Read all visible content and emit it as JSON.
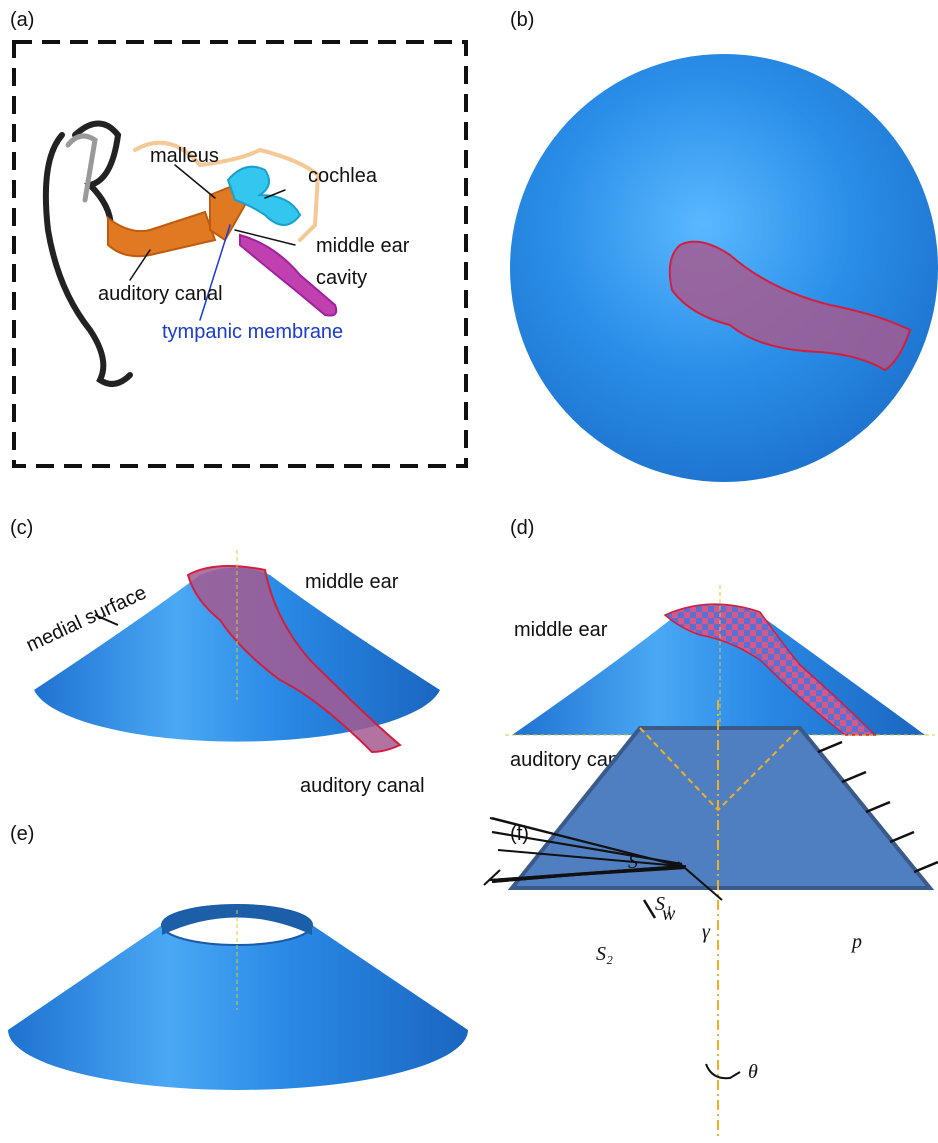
{
  "panels": [
    {
      "label": "(a)",
      "annotations": [
        "malleus",
        "cochlea",
        "middle ear",
        "cavity",
        "auditory canal",
        "tympanic membrane"
      ]
    },
    {
      "label": "(b)"
    },
    {
      "label": "(c)",
      "annotations": [
        "medial surface",
        "middle ear",
        "auditory canal"
      ]
    },
    {
      "label": "(d)",
      "annotations": [
        "middle ear",
        "auditory canal"
      ]
    },
    {
      "label": "(e)"
    },
    {
      "label": "(f)",
      "annotations": [
        "S",
        "S₁",
        "S₂",
        "γ",
        "p",
        "w",
        "θ"
      ]
    }
  ]
}
